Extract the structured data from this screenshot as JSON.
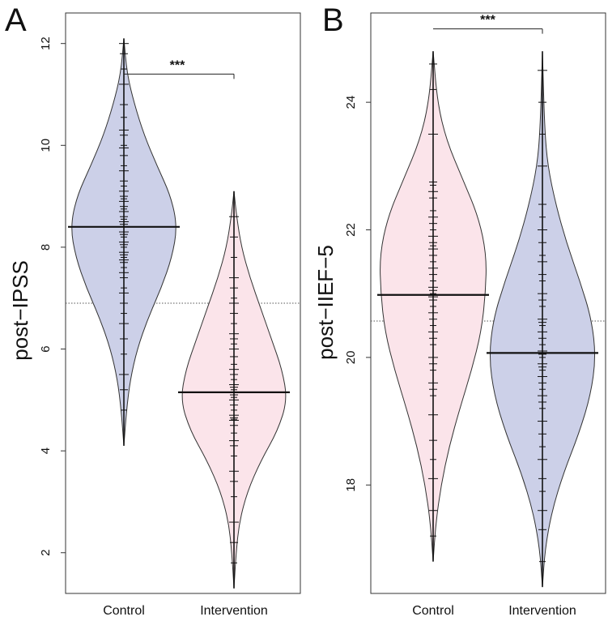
{
  "chart_data": [
    {
      "panel": "A",
      "type": "beanplot",
      "ylabel": "post−IPSS",
      "ylim": [
        1.2,
        12.6
      ],
      "yticks": [
        "2",
        "4",
        "6",
        "8",
        "10",
        "12"
      ],
      "yticks_values": [
        2,
        4,
        6,
        8,
        10,
        12
      ],
      "categories": [
        "Control",
        "Intervention"
      ],
      "overall_mean": 6.9,
      "significance": "***",
      "beans": [
        {
          "name": "Control",
          "color": "#ccd0e8",
          "mean": 8.4,
          "range": [
            4.1,
            12.1
          ],
          "density": [
            [
              4.1,
              0
            ],
            [
              4.8,
              0.05
            ],
            [
              5.4,
              0.12
            ],
            [
              6.0,
              0.25
            ],
            [
              6.6,
              0.45
            ],
            [
              7.2,
              0.7
            ],
            [
              7.8,
              0.9
            ],
            [
              8.4,
              1.0
            ],
            [
              9.0,
              0.88
            ],
            [
              9.6,
              0.62
            ],
            [
              10.2,
              0.38
            ],
            [
              10.8,
              0.2
            ],
            [
              11.4,
              0.06
            ],
            [
              12.1,
              0
            ]
          ],
          "points": [
            4.8,
            5.2,
            5.5,
            5.9,
            6.2,
            6.5,
            6.7,
            6.9,
            7.1,
            7.2,
            7.4,
            7.5,
            7.6,
            7.7,
            7.75,
            7.8,
            7.85,
            7.9,
            8.0,
            8.05,
            8.1,
            8.2,
            8.25,
            8.3,
            8.4,
            8.45,
            8.5,
            8.55,
            8.6,
            8.7,
            8.75,
            8.8,
            8.9,
            8.95,
            9.0,
            9.1,
            9.2,
            9.3,
            9.5,
            9.6,
            9.8,
            9.95,
            10.0,
            10.2,
            10.3,
            10.55,
            10.8,
            11.2,
            11.5,
            11.8,
            12.0
          ]
        },
        {
          "name": "Intervention",
          "color": "#fbe4ea",
          "mean": 5.15,
          "range": [
            1.3,
            9.1
          ],
          "density": [
            [
              1.3,
              0
            ],
            [
              2.0,
              0.04
            ],
            [
              2.6,
              0.1
            ],
            [
              3.2,
              0.25
            ],
            [
              3.8,
              0.5
            ],
            [
              4.4,
              0.82
            ],
            [
              5.0,
              1.0
            ],
            [
              5.6,
              0.9
            ],
            [
              6.2,
              0.7
            ],
            [
              6.8,
              0.5
            ],
            [
              7.4,
              0.3
            ],
            [
              8.0,
              0.14
            ],
            [
              8.6,
              0.05
            ],
            [
              9.1,
              0
            ]
          ],
          "points": [
            1.8,
            2.2,
            2.6,
            3.1,
            3.4,
            3.6,
            3.9,
            4.1,
            4.2,
            4.35,
            4.5,
            4.6,
            4.62,
            4.65,
            4.7,
            4.8,
            4.9,
            5.0,
            5.05,
            5.1,
            5.15,
            5.2,
            5.25,
            5.3,
            5.4,
            5.5,
            5.6,
            5.7,
            5.85,
            6.0,
            6.1,
            6.2,
            6.3,
            6.5,
            6.7,
            6.9,
            7.0,
            7.2,
            7.4,
            7.8,
            8.2,
            8.6
          ]
        }
      ]
    },
    {
      "panel": "B",
      "type": "beanplot",
      "ylabel": "post−IIEF−5",
      "ylim": [
        16.3,
        25.4
      ],
      "yticks": [
        "18",
        "20",
        "22",
        "24"
      ],
      "yticks_values": [
        18,
        20,
        22,
        24
      ],
      "categories": [
        "Control",
        "Intervention"
      ],
      "overall_mean": 20.57,
      "significance": "***",
      "beans": [
        {
          "name": "Control",
          "color": "#fbe4ea",
          "mean": 20.98,
          "range": [
            16.8,
            24.8
          ],
          "density": [
            [
              16.8,
              0
            ],
            [
              17.4,
              0.05
            ],
            [
              18.0,
              0.15
            ],
            [
              18.6,
              0.3
            ],
            [
              19.2,
              0.5
            ],
            [
              19.8,
              0.72
            ],
            [
              20.4,
              0.9
            ],
            [
              21.0,
              0.98
            ],
            [
              21.6,
              1.0
            ],
            [
              22.2,
              0.85
            ],
            [
              22.8,
              0.55
            ],
            [
              23.4,
              0.25
            ],
            [
              24.0,
              0.08
            ],
            [
              24.8,
              0
            ]
          ],
          "points": [
            17.2,
            17.6,
            18.1,
            18.4,
            18.7,
            19.1,
            19.4,
            19.5,
            19.6,
            19.8,
            19.9,
            20.0,
            20.2,
            20.3,
            20.4,
            20.5,
            20.6,
            20.7,
            20.8,
            20.9,
            20.95,
            21.0,
            21.05,
            21.1,
            21.2,
            21.3,
            21.4,
            21.5,
            21.6,
            21.7,
            21.75,
            21.8,
            21.9,
            22.0,
            22.1,
            22.2,
            22.3,
            22.5,
            22.6,
            22.7,
            22.75,
            23.5,
            24.2,
            24.6
          ]
        },
        {
          "name": "Intervention",
          "color": "#ccd0e8",
          "mean": 20.07,
          "range": [
            16.4,
            24.8
          ],
          "density": [
            [
              16.4,
              0
            ],
            [
              17.0,
              0.05
            ],
            [
              17.6,
              0.18
            ],
            [
              18.2,
              0.4
            ],
            [
              18.8,
              0.68
            ],
            [
              19.4,
              0.9
            ],
            [
              20.0,
              1.0
            ],
            [
              20.6,
              0.92
            ],
            [
              21.2,
              0.7
            ],
            [
              21.8,
              0.45
            ],
            [
              22.4,
              0.25
            ],
            [
              23.0,
              0.1
            ],
            [
              23.6,
              0.04
            ],
            [
              24.8,
              0
            ]
          ],
          "points": [
            16.8,
            17.3,
            17.6,
            17.9,
            18.1,
            18.4,
            18.6,
            18.8,
            19.0,
            19.2,
            19.3,
            19.4,
            19.5,
            19.6,
            19.7,
            19.8,
            19.85,
            19.9,
            20.0,
            20.05,
            20.1,
            20.2,
            20.3,
            20.4,
            20.5,
            20.55,
            20.6,
            20.8,
            20.9,
            21.0,
            21.2,
            21.3,
            21.5,
            21.6,
            21.8,
            22.0,
            22.2,
            22.4,
            23.0,
            23.5,
            24.0,
            24.5
          ]
        }
      ]
    }
  ]
}
